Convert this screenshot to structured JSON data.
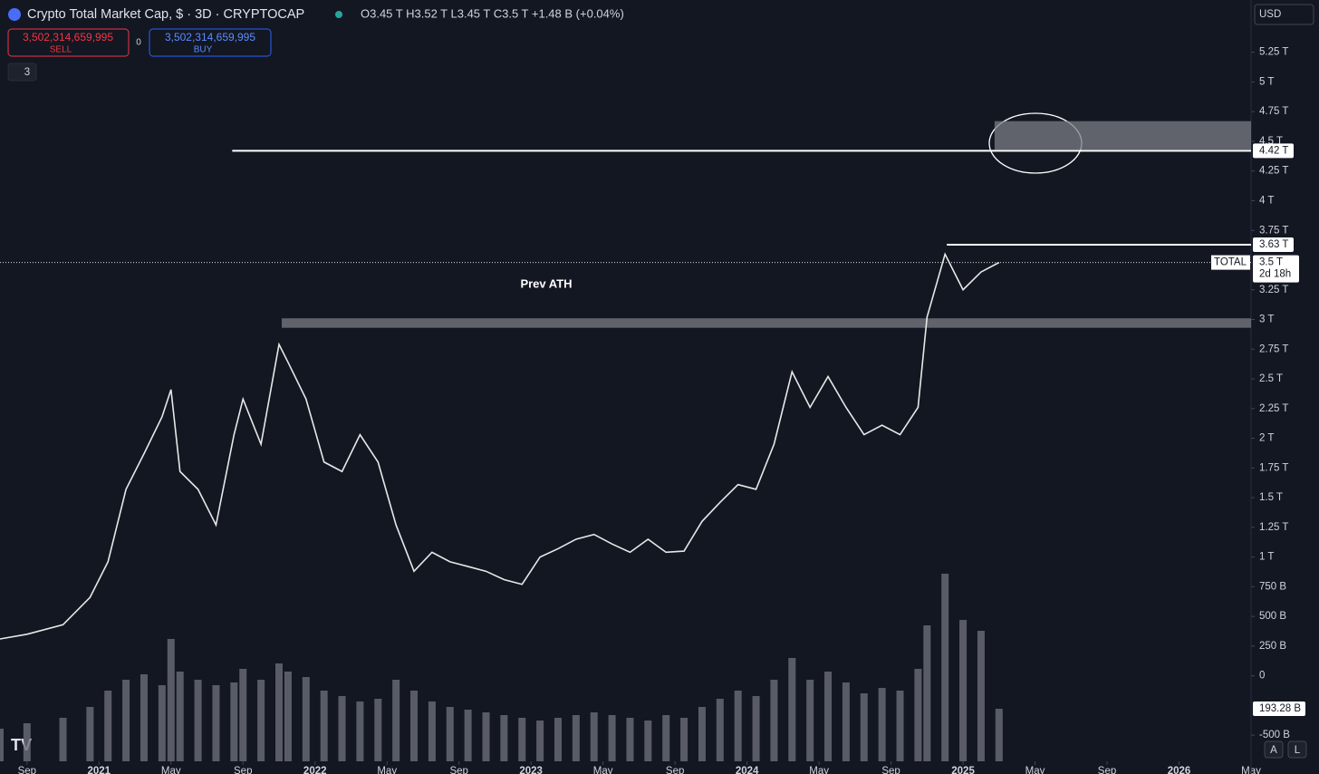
{
  "header": {
    "symbol": "Crypto Total Market Cap, $ · 3D · CRYPTOCAP",
    "ohlc": "O3.45 T H3.52 T L3.45 T C3.5 T +1.48 B (+0.04%)",
    "currency": "USD",
    "sell_price": "3,502,314,659,995",
    "sell": "SELL",
    "spread": "0",
    "buy_price": "3,502,314,659,995",
    "buy": "BUY",
    "indicators": "3"
  },
  "toolbar": {
    "auto": "A",
    "log": "L"
  },
  "chart_data": {
    "type": "line",
    "annotation": "Prev ATH",
    "x": [
      -1.5,
      0,
      2,
      3.5,
      4.5,
      5.5,
      6.5,
      7.5,
      8,
      8.5,
      9.5,
      10.5,
      11.5,
      12,
      13,
      14,
      14.5,
      15.5,
      16.5,
      17.5,
      18.5,
      19.5,
      20.5,
      21.5,
      22.5,
      23.5,
      24.5,
      25.5,
      26.5,
      27.5,
      28.5,
      29.5,
      30.5,
      31.5,
      32.5,
      33.5,
      34.5,
      35.5,
      36.5,
      37.5,
      38.5,
      39.5,
      40.5,
      41.5,
      42.5,
      43.5,
      44.5,
      45.5,
      46.5,
      47.5,
      48.5,
      49.5,
      50,
      51,
      52,
      53,
      54
    ],
    "series": [
      {
        "name": "TOTAL",
        "color": "#e8e8e8",
        "values": [
          0.31,
          0.35,
          0.43,
          0.66,
          0.96,
          1.57,
          1.87,
          2.18,
          2.41,
          1.72,
          1.57,
          1.27,
          2.03,
          2.33,
          1.95,
          2.79,
          2.64,
          2.33,
          1.8,
          1.72,
          2.03,
          1.8,
          1.27,
          0.88,
          1.04,
          0.96,
          0.92,
          0.88,
          0.81,
          0.77,
          1.0,
          1.07,
          1.15,
          1.19,
          1.11,
          1.04,
          1.15,
          1.04,
          1.05,
          1.3,
          1.46,
          1.61,
          1.57,
          1.95,
          2.56,
          2.26,
          2.52,
          2.26,
          2.03,
          2.11,
          2.03,
          2.26,
          3.02,
          3.55,
          3.25,
          3.4,
          3.48
        ]
      },
      {
        "name": "Volume",
        "color": "#6b6e78",
        "axis": "y2",
        "values": [
          120,
          140,
          160,
          200,
          260,
          300,
          320,
          280,
          450,
          330,
          300,
          280,
          290,
          340,
          300,
          360,
          330,
          310,
          260,
          240,
          220,
          230,
          300,
          260,
          220,
          200,
          190,
          180,
          170,
          160,
          150,
          160,
          170,
          180,
          170,
          160,
          150,
          170,
          160,
          200,
          230,
          260,
          240,
          300,
          380,
          300,
          330,
          290,
          250,
          270,
          260,
          340,
          500,
          690,
          520,
          480,
          193.28
        ]
      }
    ],
    "value_labels": {
      "current": "3.5 T",
      "symbol": "TOTAL",
      "countdown": "2d 18h",
      "volume": "193.28 B"
    },
    "levels": [
      {
        "value": 4.42,
        "label": "4.42 T",
        "from": 11.4,
        "color": "#ffffff"
      },
      {
        "value": 3.63,
        "label": "3.63 T",
        "from": 51.1,
        "color": "#ffffff"
      }
    ],
    "zones": [
      {
        "low": 4.43,
        "high": 4.67,
        "from": 53.75
      },
      {
        "low": 2.93,
        "high": 3.01,
        "from": 14.15
      }
    ],
    "xlim": [
      -1.5,
      68
    ],
    "ylim": [
      -0.72,
      5.69
    ],
    "y2lim": [
      0,
      1000
    ],
    "xticks": [
      {
        "value": 0,
        "label": "Sep"
      },
      {
        "value": 4,
        "label": "2021"
      },
      {
        "value": 8,
        "label": "May"
      },
      {
        "value": 12,
        "label": "Sep"
      },
      {
        "value": 16,
        "label": "2022"
      },
      {
        "value": 20,
        "label": "May"
      },
      {
        "value": 24,
        "label": "Sep"
      },
      {
        "value": 28,
        "label": "2023"
      },
      {
        "value": 32,
        "label": "May"
      },
      {
        "value": 36,
        "label": "Sep"
      },
      {
        "value": 40,
        "label": "2024"
      },
      {
        "value": 44,
        "label": "May"
      },
      {
        "value": 48,
        "label": "Sep"
      },
      {
        "value": 52,
        "label": "2025"
      },
      {
        "value": 56,
        "label": "May"
      },
      {
        "value": 60,
        "label": "Sep"
      },
      {
        "value": 64,
        "label": "2026"
      },
      {
        "value": 68,
        "label": "May"
      }
    ],
    "yticks": [
      {
        "value": 5.25,
        "label": "5.25 T"
      },
      {
        "value": 5,
        "label": "5 T"
      },
      {
        "value": 4.75,
        "label": "4.75 T"
      },
      {
        "value": 4.5,
        "label": "4.5 T"
      },
      {
        "value": 4.25,
        "label": "4.25 T"
      },
      {
        "value": 4,
        "label": "4 T"
      },
      {
        "value": 3.75,
        "label": "3.75 T"
      },
      {
        "value": 3.25,
        "label": "3.25 T"
      },
      {
        "value": 3,
        "label": "3 T"
      },
      {
        "value": 2.75,
        "label": "2.75 T"
      },
      {
        "value": 2.5,
        "label": "2.5 T"
      },
      {
        "value": 2.25,
        "label": "2.25 T"
      },
      {
        "value": 2,
        "label": "2 T"
      },
      {
        "value": 1.75,
        "label": "1.75 T"
      },
      {
        "value": 1.5,
        "label": "1.5 T"
      },
      {
        "value": 1.25,
        "label": "1.25 T"
      },
      {
        "value": 1,
        "label": "1 T"
      },
      {
        "value": 0.75,
        "label": "750 B"
      },
      {
        "value": 0.5,
        "label": "500 B"
      },
      {
        "value": 0.25,
        "label": "250 B"
      },
      0,
      {
        "value": -0.5,
        "label": "-500 B"
      }
    ]
  }
}
